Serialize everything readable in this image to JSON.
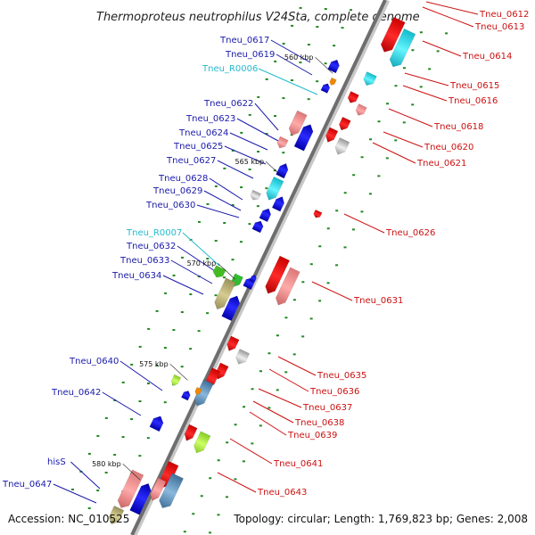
{
  "title": "Thermoproteus neutrophilus V24Sta, complete genome",
  "footer": {
    "accession": "Accession: NC_010525",
    "topology": "Topology: circular; Length: 1,769,823 bp; Genes: 2,008"
  },
  "colors": {
    "backbone": "#808080",
    "forward_gene": "#ee1111",
    "reverse_gene": "#1111dd",
    "rna": "#22ccdd",
    "label_left": "#1a1aaa",
    "label_right": "#cc1111",
    "label_rna": "#22bbcc",
    "tick": "#228822"
  },
  "scale_labels": [
    "560 kbp",
    "565 kbp",
    "570 kbp",
    "575 kbp",
    "580 kbp"
  ],
  "left_labels": [
    {
      "text": "Tneu_0617",
      "color": "#1a1aaa"
    },
    {
      "text": "Tneu_0619",
      "color": "#1a1aaa"
    },
    {
      "text": "Tneu_R0006",
      "color": "#22bbcc"
    },
    {
      "text": "Tneu_0622",
      "color": "#1a1aaa"
    },
    {
      "text": "Tneu_0623",
      "color": "#1a1aaa"
    },
    {
      "text": "Tneu_0624",
      "color": "#1a1aaa"
    },
    {
      "text": "Tneu_0625",
      "color": "#1a1aaa"
    },
    {
      "text": "Tneu_0627",
      "color": "#1a1aaa"
    },
    {
      "text": "Tneu_0628",
      "color": "#1a1aaa"
    },
    {
      "text": "Tneu_0629",
      "color": "#1a1aaa"
    },
    {
      "text": "Tneu_0630",
      "color": "#1a1aaa"
    },
    {
      "text": "Tneu_R0007",
      "color": "#22bbcc"
    },
    {
      "text": "Tneu_0632",
      "color": "#1a1aaa"
    },
    {
      "text": "Tneu_0633",
      "color": "#1a1aaa"
    },
    {
      "text": "Tneu_0634",
      "color": "#1a1aaa"
    },
    {
      "text": "Tneu_0640",
      "color": "#1a1aaa"
    },
    {
      "text": "Tneu_0642",
      "color": "#1a1aaa"
    },
    {
      "text": "hisS",
      "color": "#1a1aaa"
    },
    {
      "text": "Tneu_0647",
      "color": "#1a1aaa"
    }
  ],
  "right_labels": [
    {
      "text": "Tneu_0612",
      "color": "#cc1111"
    },
    {
      "text": "Tneu_0613",
      "color": "#cc1111"
    },
    {
      "text": "Tneu_0614",
      "color": "#cc1111"
    },
    {
      "text": "Tneu_0615",
      "color": "#cc1111"
    },
    {
      "text": "Tneu_0616",
      "color": "#cc1111"
    },
    {
      "text": "Tneu_0618",
      "color": "#cc1111"
    },
    {
      "text": "Tneu_0620",
      "color": "#cc1111"
    },
    {
      "text": "Tneu_0621",
      "color": "#cc1111"
    },
    {
      "text": "Tneu_0626",
      "color": "#cc1111"
    },
    {
      "text": "Tneu_0631",
      "color": "#cc1111"
    },
    {
      "text": "Tneu_0635",
      "color": "#cc1111"
    },
    {
      "text": "Tneu_0636",
      "color": "#cc1111"
    },
    {
      "text": "Tneu_0637",
      "color": "#cc1111"
    },
    {
      "text": "Tneu_0638",
      "color": "#cc1111"
    },
    {
      "text": "Tneu_0639",
      "color": "#cc1111"
    },
    {
      "text": "Tneu_0641",
      "color": "#cc1111"
    },
    {
      "text": "Tneu_0643",
      "color": "#cc1111"
    }
  ]
}
